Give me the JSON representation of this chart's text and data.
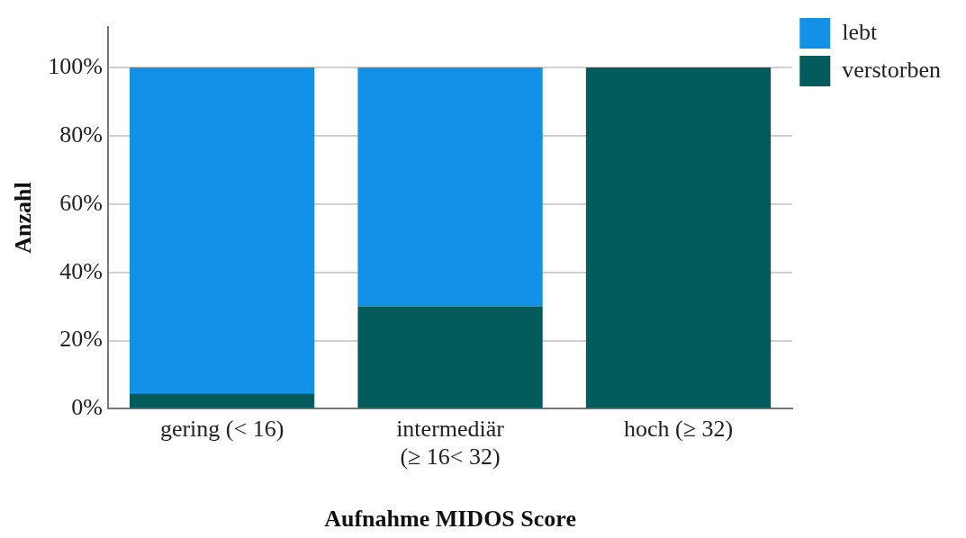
{
  "chart_data": {
    "type": "bar",
    "xlabel": "Aufnahme MIDOS Score",
    "ylabel": "Anzahl",
    "categories": [
      "gering (< 16)",
      "intermediär (≥ 16< 32)",
      "hoch (≥ 32)"
    ],
    "stacked": true,
    "series": [
      {
        "name": "verstorben",
        "color": "#035b5b",
        "values": [
          4.5,
          30,
          100
        ]
      },
      {
        "name": "lebt",
        "color": "#1391e6",
        "values": [
          95.5,
          70,
          0
        ]
      }
    ],
    "ylim": [
      0,
      112
    ],
    "yticks": [
      {
        "value": 0,
        "label": "0%"
      },
      {
        "value": 20,
        "label": "20%"
      },
      {
        "value": 40,
        "label": "40%"
      },
      {
        "value": 60,
        "label": "60%"
      },
      {
        "value": 80,
        "label": "80%"
      },
      {
        "value": 100,
        "label": "100%"
      }
    ],
    "grid": "y",
    "legend": "top right"
  }
}
